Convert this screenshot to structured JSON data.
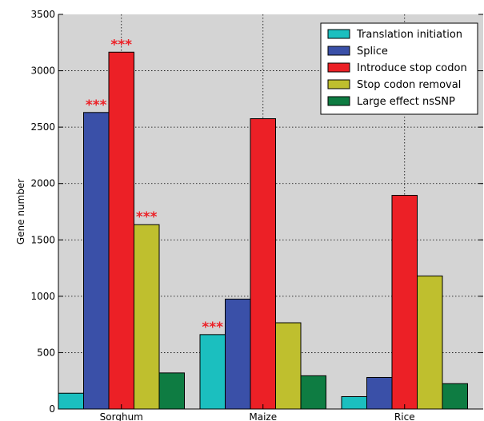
{
  "chart_data": {
    "type": "bar",
    "categories": [
      "Sorghum",
      "Maize",
      "Rice"
    ],
    "series": [
      {
        "name": "Translation initiation",
        "color": "#1bbfbf",
        "values": [
          140,
          660,
          110
        ]
      },
      {
        "name": "Splice",
        "color": "#3a50a8",
        "values": [
          2630,
          975,
          280
        ]
      },
      {
        "name": "Introduce stop codon",
        "color": "#ec2026",
        "values": [
          3165,
          2575,
          1895
        ]
      },
      {
        "name": "Stop codon removal",
        "color": "#bfbf2e",
        "values": [
          1635,
          765,
          1180
        ]
      },
      {
        "name": "Large effect nsSNP",
        "color": "#0e7c42",
        "values": [
          320,
          295,
          225
        ]
      }
    ],
    "significance": [
      {
        "category": "Sorghum",
        "series": "Splice",
        "label": "***"
      },
      {
        "category": "Sorghum",
        "series": "Introduce stop codon",
        "label": "***"
      },
      {
        "category": "Sorghum",
        "series": "Stop codon removal",
        "label": "***"
      },
      {
        "category": "Maize",
        "series": "Translation initiation",
        "label": "***"
      }
    ],
    "title": "",
    "xlabel": "",
    "ylabel": "Gene number",
    "ylim": [
      0,
      3500
    ],
    "yticks": [
      0,
      500,
      1000,
      1500,
      2000,
      2500,
      3000,
      3500
    ],
    "grid": true,
    "legend_position": "top-right",
    "plot_background": "#d4d4d4",
    "significance_color": "#ec2026"
  }
}
